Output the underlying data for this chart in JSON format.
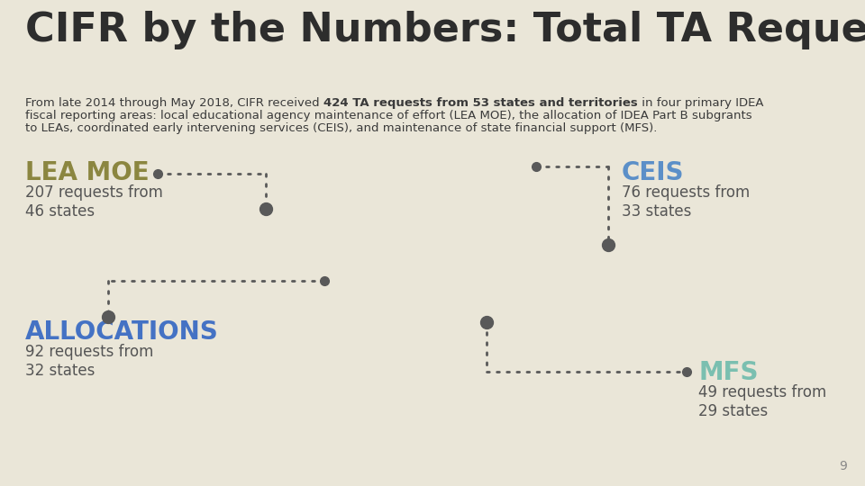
{
  "background_color": "#eae6d8",
  "title": "CIFR by the Numbers: Total TA Requests",
  "title_color": "#2d2d2d",
  "title_fontsize": 32,
  "subtitle_line1_normal": "From late 2014 through May 2018, CIFR received ",
  "subtitle_line1_bold": "424 TA requests from 53 states and territories",
  "subtitle_line1_normal2": " in four primary IDEA",
  "subtitle_line2": "fiscal reporting areas: local educational agency maintenance of effort (LEA MOE), the allocation of IDEA Part B subgrants",
  "subtitle_line3": "to LEAs, coordinated early intervening services (CEIS), and maintenance of state financial support (MFS).",
  "subtitle_fontsize": 9.5,
  "subtitle_color": "#3a3a3a",
  "lea_moe_label": "LEA MOE",
  "lea_moe_color": "#8b8640",
  "lea_moe_sub": "207 requests from\n46 states",
  "ceis_label": "CEIS",
  "ceis_color": "#5b8fc8",
  "ceis_sub": "76 requests from\n33 states",
  "alloc_label": "ALLOCATIONS",
  "alloc_color": "#4472c4",
  "alloc_sub": "92 requests from\n32 states",
  "mfs_label": "MFS",
  "mfs_color": "#7abfb0",
  "mfs_sub": "49 requests from\n29 states",
  "sub_label_color": "#555555",
  "sub_label_fontsize": 12,
  "label_fontsize": 20,
  "dot_color": "#595959",
  "line_color": "#595959",
  "page_number": "9",
  "page_number_color": "#888888"
}
